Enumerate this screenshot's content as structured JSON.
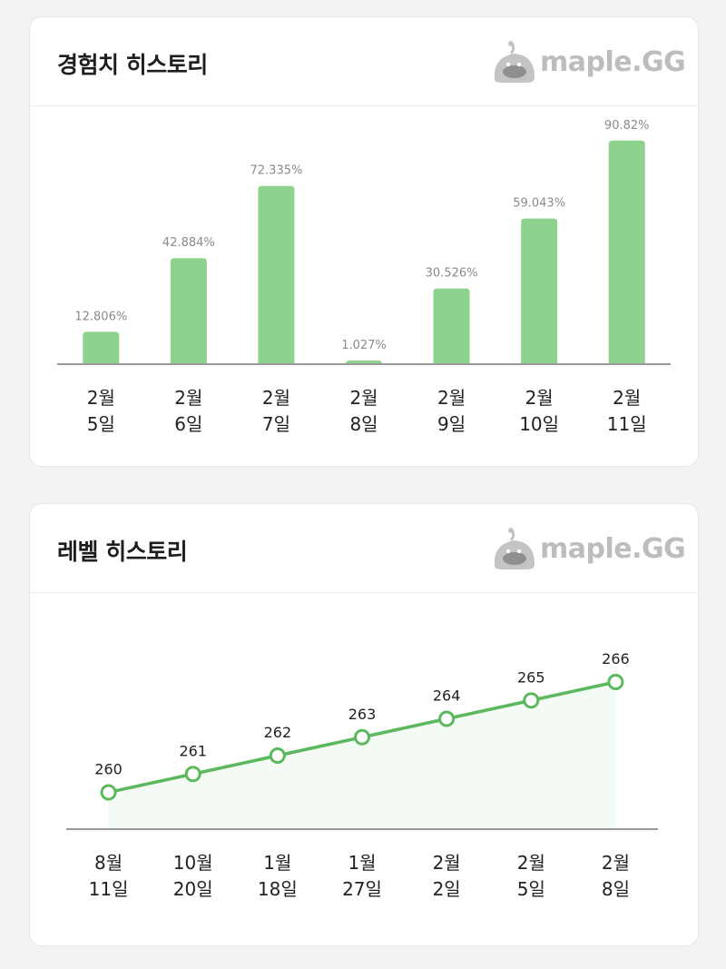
{
  "cards": [
    {
      "title": "경험치 히스토리",
      "logo": "maple.GG"
    },
    {
      "title": "레벨 히스토리",
      "logo": "maple.GG"
    }
  ],
  "colors": {
    "bar": "#8dd28d",
    "line": "#5cb85c",
    "area": "#f4faf4",
    "axis": "#9a9a9a"
  },
  "chart_data": [
    {
      "type": "bar",
      "title": "경험치 히스토리",
      "categories": [
        [
          "2월",
          "5일"
        ],
        [
          "2월",
          "6일"
        ],
        [
          "2월",
          "7일"
        ],
        [
          "2월",
          "8일"
        ],
        [
          "2월",
          "9일"
        ],
        [
          "2월",
          "10일"
        ],
        [
          "2월",
          "11일"
        ]
      ],
      "values": [
        12.806,
        42.884,
        72.335,
        1.027,
        30.526,
        59.043,
        90.82
      ],
      "value_labels": [
        "12.806%",
        "42.884%",
        "72.335%",
        "1.027%",
        "30.526%",
        "59.043%",
        "90.82%"
      ],
      "ylim": [
        0,
        100
      ],
      "grid": false
    },
    {
      "type": "area",
      "title": "레벨 히스토리",
      "categories": [
        [
          "8월",
          "11일"
        ],
        [
          "10월",
          "20일"
        ],
        [
          "1월",
          "18일"
        ],
        [
          "1월",
          "27일"
        ],
        [
          "2월",
          "2일"
        ],
        [
          "2월",
          "5일"
        ],
        [
          "2월",
          "8일"
        ]
      ],
      "values": [
        260,
        261,
        262,
        263,
        264,
        265,
        266
      ],
      "value_labels": [
        "260",
        "261",
        "262",
        "263",
        "264",
        "265",
        "266"
      ],
      "ylim": [
        258,
        266
      ],
      "grid": false
    }
  ]
}
